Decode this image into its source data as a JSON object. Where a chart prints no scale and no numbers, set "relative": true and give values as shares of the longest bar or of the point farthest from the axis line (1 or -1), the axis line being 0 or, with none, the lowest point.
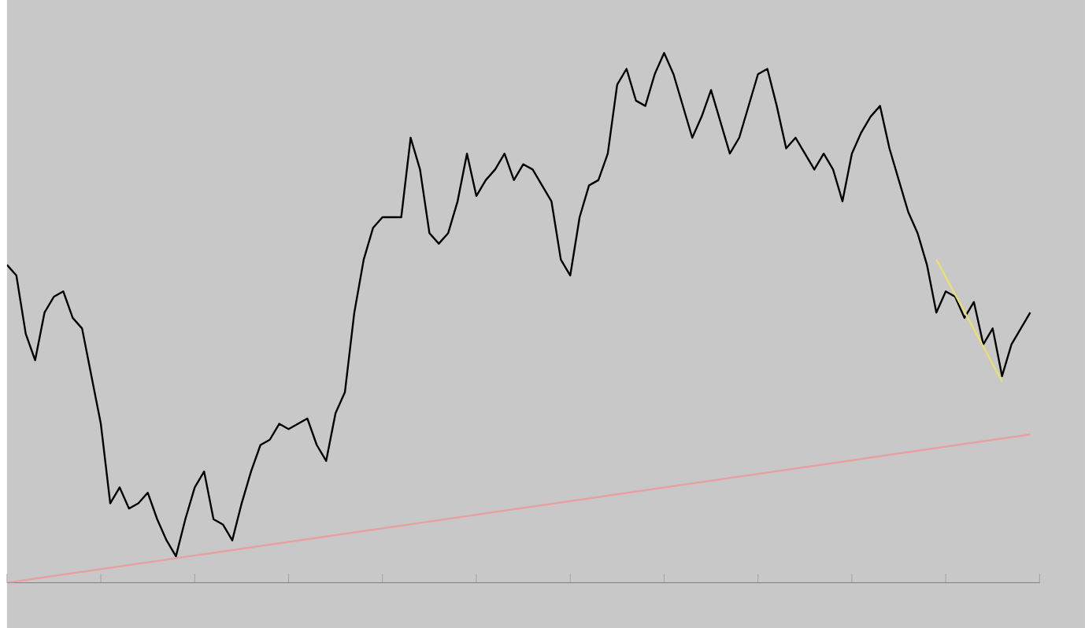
{
  "chart_data": {
    "type": "line",
    "relative": true,
    "categories": [
      null,
      null,
      null,
      null,
      null,
      null,
      null,
      null,
      null,
      null,
      null,
      null,
      null,
      null,
      null,
      null,
      null,
      null,
      null,
      null,
      null,
      null,
      null,
      null,
      null,
      null,
      null,
      null,
      null,
      null,
      null,
      null,
      null,
      null,
      null,
      null,
      null,
      null,
      null,
      null,
      null,
      null,
      null,
      null,
      null,
      null,
      null,
      null,
      null,
      null,
      null,
      null,
      null,
      null,
      null,
      null,
      null,
      null,
      null,
      null,
      null,
      null,
      null,
      null,
      null,
      null,
      null,
      null,
      null,
      null,
      null,
      null,
      null,
      null,
      null,
      null,
      null,
      null,
      null,
      null,
      null,
      null,
      null,
      null,
      null,
      null,
      null,
      null,
      null,
      null,
      null,
      null,
      null,
      null,
      null,
      null,
      null,
      null,
      null,
      null,
      null,
      null,
      null,
      null,
      null,
      null,
      null,
      null,
      null,
      null
    ],
    "series": [
      {
        "color": "#000000",
        "values": [
          0.6,
          0.58,
          0.47,
          0.42,
          0.51,
          0.54,
          0.55,
          0.5,
          0.48,
          0.39,
          0.3,
          0.15,
          0.18,
          0.14,
          0.15,
          0.17,
          0.12,
          0.08,
          0.05,
          0.12,
          0.18,
          0.21,
          0.12,
          0.11,
          0.08,
          0.15,
          0.21,
          0.26,
          0.27,
          0.3,
          0.29,
          0.3,
          0.31,
          0.26,
          0.23,
          0.32,
          0.36,
          0.51,
          0.61,
          0.67,
          0.69,
          0.69,
          0.69,
          0.84,
          0.78,
          0.66,
          0.64,
          0.66,
          0.72,
          0.81,
          0.73,
          0.76,
          0.78,
          0.81,
          0.76,
          0.79,
          0.78,
          0.75,
          0.72,
          0.61,
          0.58,
          0.69,
          0.75,
          0.76,
          0.81,
          0.94,
          0.97,
          0.91,
          0.9,
          0.96,
          1.0,
          0.96,
          0.9,
          0.84,
          0.88,
          0.93,
          0.87,
          0.81,
          0.84,
          0.9,
          0.96,
          0.97,
          0.9,
          0.82,
          0.84,
          0.81,
          0.78,
          0.81,
          0.78,
          0.72,
          0.81,
          0.85,
          0.88,
          0.9,
          0.82,
          0.76,
          0.7,
          0.66,
          0.6,
          0.51,
          0.55,
          0.54,
          0.5,
          0.53,
          0.45,
          0.48,
          0.39,
          0.45,
          0.48,
          0.51
        ]
      },
      {
        "color": "#e8a0a0",
        "values": [
          0,
          null,
          null,
          null,
          null,
          null,
          null,
          null,
          null,
          null,
          null,
          null,
          null,
          null,
          null,
          null,
          null,
          null,
          null,
          null,
          null,
          null,
          null,
          null,
          null,
          null,
          null,
          null,
          null,
          null,
          null,
          null,
          null,
          null,
          null,
          null,
          null,
          null,
          null,
          null,
          null,
          null,
          null,
          null,
          null,
          null,
          null,
          null,
          null,
          null,
          null,
          null,
          null,
          null,
          null,
          null,
          null,
          null,
          null,
          null,
          null,
          null,
          null,
          null,
          null,
          null,
          null,
          null,
          null,
          null,
          null,
          null,
          null,
          null,
          null,
          null,
          null,
          null,
          null,
          null,
          null,
          null,
          null,
          null,
          null,
          null,
          null,
          null,
          null,
          null,
          null,
          null,
          null,
          null,
          null,
          null,
          null,
          null,
          null,
          null,
          null,
          null,
          null,
          null,
          null,
          null,
          null,
          null,
          null,
          0.28
        ]
      },
      {
        "color": "#e8e070",
        "values": [
          null,
          null,
          null,
          null,
          null,
          null,
          null,
          null,
          null,
          null,
          null,
          null,
          null,
          null,
          null,
          null,
          null,
          null,
          null,
          null,
          null,
          null,
          null,
          null,
          null,
          null,
          null,
          null,
          null,
          null,
          null,
          null,
          null,
          null,
          null,
          null,
          null,
          null,
          null,
          null,
          null,
          null,
          null,
          null,
          null,
          null,
          null,
          null,
          null,
          null,
          null,
          null,
          null,
          null,
          null,
          null,
          null,
          null,
          null,
          null,
          null,
          null,
          null,
          null,
          null,
          null,
          null,
          null,
          null,
          null,
          null,
          null,
          null,
          null,
          null,
          null,
          null,
          null,
          null,
          null,
          null,
          null,
          null,
          null,
          null,
          null,
          null,
          null,
          null,
          null,
          null,
          null,
          null,
          null,
          null,
          null,
          null,
          null,
          null,
          0.61,
          null,
          null,
          null,
          null,
          null,
          null,
          0.38,
          null,
          null,
          null
        ]
      }
    ]
  }
}
